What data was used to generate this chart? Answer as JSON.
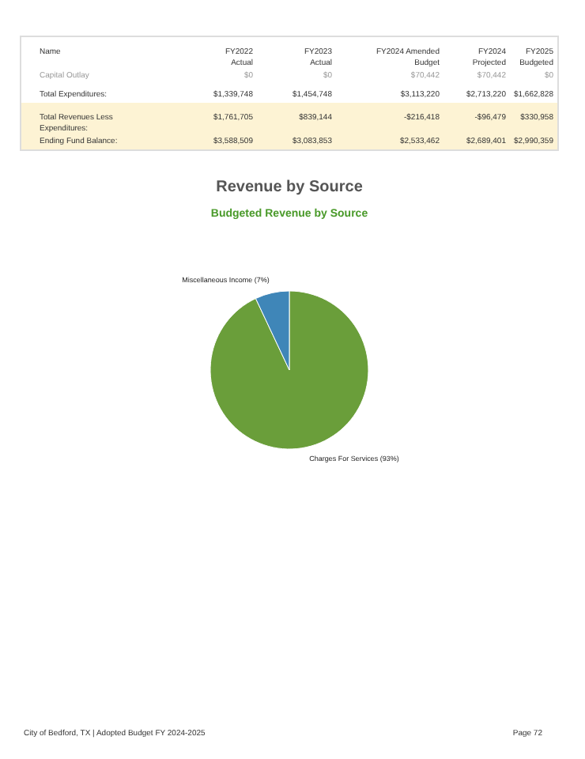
{
  "chart_data": [
    {
      "type": "other",
      "annotations": [
        "Name",
        "FY2022\nActual",
        "FY2023\nActual",
        "FY2024 Amended\nBudget",
        "FY2024\nProjected",
        "FY2025\nBudgeted",
        "Capital Outlay",
        "$0",
        "$0",
        "$70,442",
        "$70,442",
        "$0",
        "Total Expenditures:",
        "$1,339,748",
        "$1,454,748",
        "$3,113,220",
        "$2,713,220",
        "$1,662,828",
        "Total Revenues Less\nExpenditures:",
        "$1,761,705",
        "$839,144",
        "-$216,418",
        "-$96,479",
        "$330,958",
        "Ending Fund Balance:",
        "$3,588,509",
        "$3,083,853",
        "$2,533,462",
        "$2,689,401",
        "$2,990,359"
      ]
    },
    {
      "type": "pie",
      "title": "Revenue by Source",
      "subtitle": "Budgeted Revenue by Source",
      "categories": [
        "Charges For Services",
        "Miscellaneous Income"
      ],
      "values": [
        93,
        7
      ],
      "colors": [
        "#6a9e3a",
        "#3f86b8"
      ],
      "value_labels": [
        "(93%)",
        "(7%)"
      ],
      "annotations": [
        "City of Bedford, TX | Adopted Budget FY 2024-2025",
        "Page 72"
      ]
    }
  ]
}
